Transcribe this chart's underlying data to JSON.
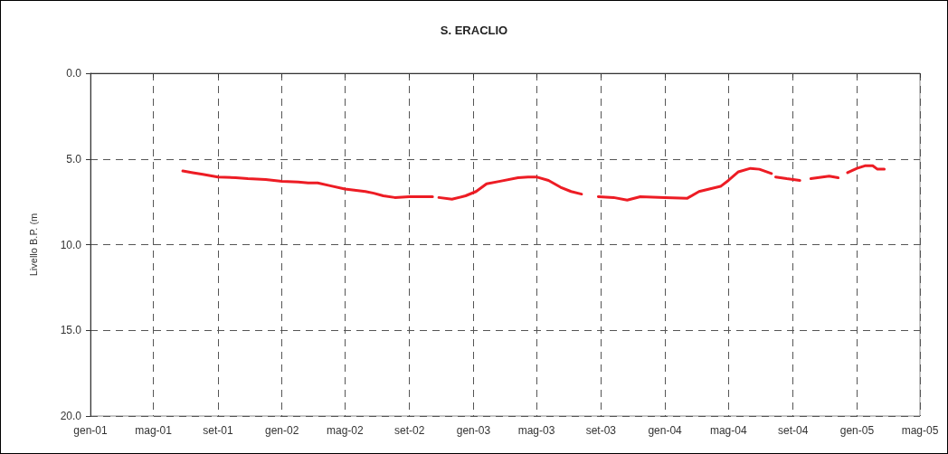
{
  "chart_data": {
    "type": "line",
    "title": "S. ERACLIO",
    "ylabel": "Livello B.P. (m",
    "color": "#ed1c24",
    "line_style": "solid",
    "grid": true,
    "xlim": [
      "2001-01-01",
      "2005-05-01"
    ],
    "xticks": [
      {
        "value": "2001-01-01",
        "label": "gen-01"
      },
      {
        "value": "2001-05-01",
        "label": "mag-01"
      },
      {
        "value": "2001-09-01",
        "label": "set-01"
      },
      {
        "value": "2002-01-01",
        "label": "gen-02"
      },
      {
        "value": "2002-05-01",
        "label": "mag-02"
      },
      {
        "value": "2002-09-01",
        "label": "set-02"
      },
      {
        "value": "2003-01-01",
        "label": "gen-03"
      },
      {
        "value": "2003-05-01",
        "label": "mag-03"
      },
      {
        "value": "2003-09-01",
        "label": "set-03"
      },
      {
        "value": "2004-01-01",
        "label": "gen-04"
      },
      {
        "value": "2004-05-01",
        "label": "mag-04"
      },
      {
        "value": "2004-09-01",
        "label": "set-04"
      },
      {
        "value": "2005-01-01",
        "label": "gen-05"
      },
      {
        "value": "2005-05-01",
        "label": "mag-05"
      }
    ],
    "ylim": [
      20,
      0
    ],
    "yticks": [
      {
        "value": 0,
        "label": "0.0"
      },
      {
        "value": 5,
        "label": "5.0"
      },
      {
        "value": 10,
        "label": "10.0"
      },
      {
        "value": 15,
        "label": "15.0"
      },
      {
        "value": 20,
        "label": "20.0"
      }
    ],
    "x": [
      "2001-06-26",
      "2001-07-15",
      "2001-08-03",
      "2001-09-01",
      "2001-10-05",
      "2001-10-28",
      "2001-12-01",
      "2002-01-01",
      "2002-02-01",
      "2002-02-20",
      "2002-03-10",
      "2002-04-01",
      "2002-05-01",
      "2002-06-09",
      "2002-06-25",
      "2002-07-13",
      "2002-08-04",
      "2002-09-01",
      "2002-09-24",
      "2002-10-15",
      "2002-10-21",
      "2002-10-27",
      "2002-11-21",
      "2002-12-17",
      "2003-01-06",
      "2003-01-26",
      "2003-02-21",
      "2003-03-27",
      "2003-04-15",
      "2003-05-01",
      "2003-05-24",
      "2003-06-16",
      "2003-07-06",
      "2003-07-26",
      "2003-08-10",
      "2003-08-27",
      "2003-09-25",
      "2003-10-21",
      "2003-11-15",
      "2004-01-01",
      "2004-02-12",
      "2004-03-06",
      "2004-04-16",
      "2004-05-01",
      "2004-05-20",
      "2004-06-12",
      "2004-06-29",
      "2004-07-22",
      "2004-07-26",
      "2004-07-30",
      "2004-08-20",
      "2004-09-14",
      "2004-09-25",
      "2004-10-05",
      "2004-11-09",
      "2004-11-26",
      "2004-12-05",
      "2004-12-14",
      "2005-01-01",
      "2005-01-16",
      "2005-01-31",
      "2005-02-09",
      "2005-02-22"
    ],
    "values": [
      5.7,
      5.8,
      5.9,
      6.05,
      6.1,
      6.15,
      6.2,
      6.3,
      6.35,
      6.4,
      6.4,
      6.55,
      6.75,
      6.9,
      7.0,
      7.15,
      7.25,
      7.2,
      7.2,
      7.2,
      null,
      7.25,
      7.35,
      7.15,
      6.9,
      6.45,
      6.3,
      6.1,
      6.05,
      6.05,
      6.25,
      6.65,
      6.9,
      7.05,
      null,
      7.2,
      7.25,
      7.4,
      7.2,
      7.25,
      7.3,
      6.9,
      6.6,
      6.25,
      5.75,
      5.55,
      5.6,
      5.85,
      null,
      6.05,
      6.15,
      6.25,
      null,
      6.15,
      6.0,
      6.1,
      null,
      5.8,
      5.55,
      5.4,
      5.4,
      5.6,
      5.6
    ]
  }
}
